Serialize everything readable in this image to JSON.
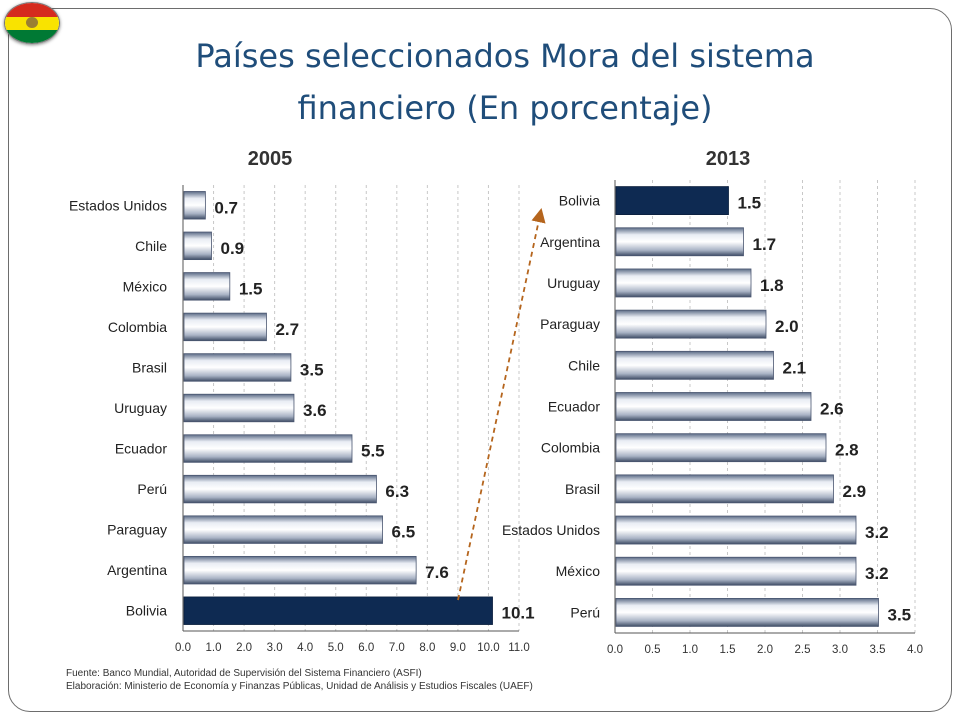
{
  "title_line1": "Países seleccionados Mora del sistema",
  "title_line2": "financiero (En porcentaje)",
  "footnote_source": "Fuente: Banco Mundial, Autoridad de Supervisión del Sistema Financiero (ASFI)",
  "footnote_elaboration": "Elaboración: Ministerio de Economía y Finanzas Públicas, Unidad de Análisis y Estudios Fiscales (UAEF)",
  "colors": {
    "highlight": "#0e2a52",
    "bar_light": "#f4f6fa",
    "bar_dark": "#6f7f99",
    "title": "#1f4d7a",
    "arrow": "#b5651d"
  },
  "chart_data": [
    {
      "type": "bar",
      "orientation": "horizontal",
      "title": "2005",
      "categories": [
        "Estados Unidos",
        "Chile",
        "México",
        "Colombia",
        "Brasil",
        "Uruguay",
        "Ecuador",
        "Perú",
        "Paraguay",
        "Argentina",
        "Bolivia"
      ],
      "values": [
        0.7,
        0.9,
        1.5,
        2.7,
        3.5,
        3.6,
        5.5,
        6.3,
        6.5,
        7.6,
        10.1
      ],
      "value_labels": [
        "0.7",
        "0.9",
        "1.5",
        "2.7",
        "3.5",
        "3.6",
        "5.5",
        "6.3",
        "6.5",
        "7.6",
        "10.1"
      ],
      "highlight": "Bolivia",
      "xlim": [
        0,
        11
      ],
      "xticks": [
        "0.0",
        "1.0",
        "2.0",
        "3.0",
        "4.0",
        "5.0",
        "6.0",
        "7.0",
        "8.0",
        "9.0",
        "10.0",
        "11.0"
      ],
      "grid": "vertical"
    },
    {
      "type": "bar",
      "orientation": "horizontal",
      "title": "2013",
      "categories": [
        "Bolivia",
        "Argentina",
        "Uruguay",
        "Paraguay",
        "Chile",
        "Ecuador",
        "Colombia",
        "Brasil",
        "Estados Unidos",
        "México",
        "Perú"
      ],
      "values": [
        1.5,
        1.7,
        1.8,
        2.0,
        2.1,
        2.6,
        2.8,
        2.9,
        3.2,
        3.2,
        3.5
      ],
      "value_labels": [
        "1.5",
        "1.7",
        "1.8",
        "2.0",
        "2.1",
        "2.6",
        "2.8",
        "2.9",
        "3.2",
        "3.2",
        "3.5"
      ],
      "highlight": "Bolivia",
      "xlim": [
        0,
        4
      ],
      "xticks": [
        "0.0",
        "0.5",
        "1.0",
        "1.5",
        "2.0",
        "2.5",
        "3.0",
        "3.5",
        "4.0"
      ],
      "grid": "vertical"
    }
  ]
}
